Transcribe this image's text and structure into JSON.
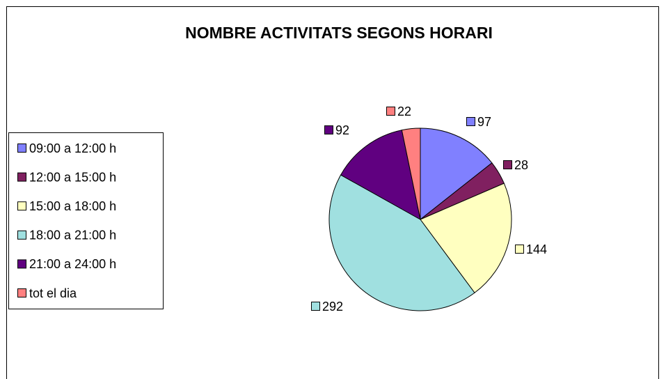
{
  "chart_data": {
    "type": "pie",
    "title": "NOMBRE ACTIVITATS SEGONS HORARI",
    "categories": [
      "09:00 a 12:00 h",
      "12:00 a 15:00 h",
      "15:00 a 18:00 h",
      "18:00 a 21:00 h",
      "21:00 a 24:00 h",
      "tot el dia"
    ],
    "values": [
      97,
      28,
      144,
      292,
      92,
      22
    ],
    "colors": [
      "#8080ff",
      "#802060",
      "#ffffc0",
      "#a0e0e0",
      "#600080",
      "#ff8080"
    ],
    "legend": "left"
  }
}
